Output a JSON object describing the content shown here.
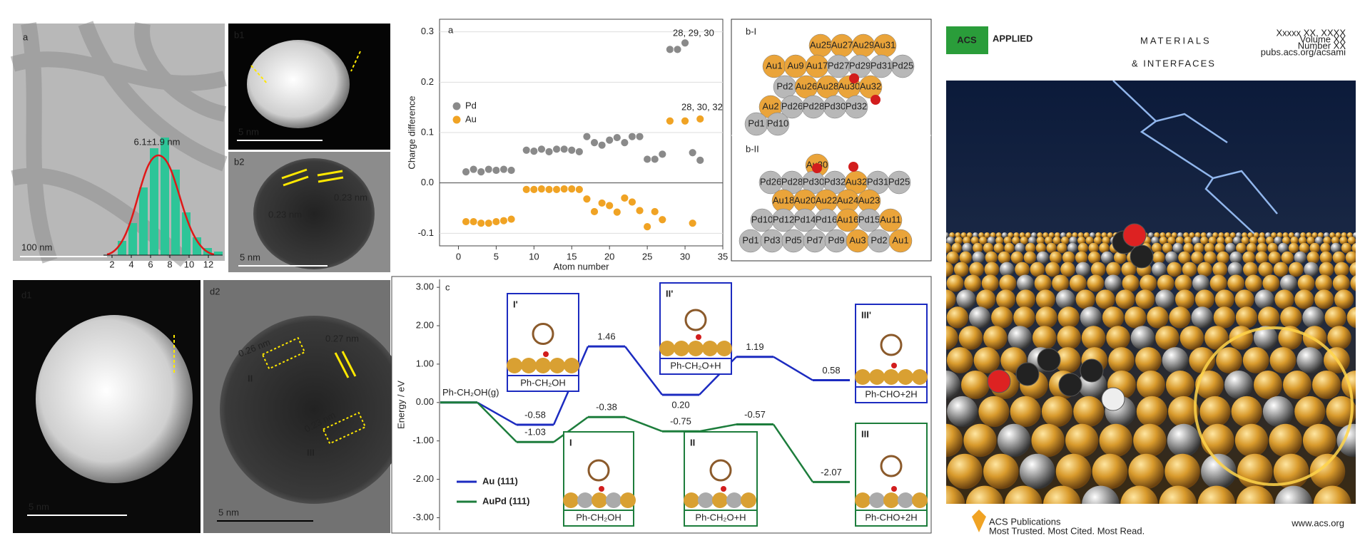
{
  "figure": {
    "panel_a": {
      "label": "a",
      "size": "6.1±1.9 nm",
      "scale": "100 nm",
      "hist_ticks": [
        2,
        4,
        6,
        8,
        10,
        12
      ]
    },
    "panel_b1": {
      "label": "b1",
      "scale": "5 nm"
    },
    "panel_b2": {
      "label": "b2",
      "spacing_1": "0.23 nm",
      "spacing_2": "0.23 nm",
      "scale": "5 nm"
    },
    "panel_d1": {
      "label": "d1",
      "scale": "5 nm"
    },
    "panel_d2": {
      "label": "d2",
      "spacing_1": "0.26 nm",
      "spacing_2": "0.27 nm",
      "spacing_3": "0.23 nm",
      "mark_2": "II",
      "mark_3": "III",
      "scale": "5 nm"
    },
    "panel_b_I": {
      "label": "b-I",
      "atoms": [
        [
          "Au25",
          "Au27",
          "Au29",
          "Au31"
        ],
        [
          "Au1",
          "Au9",
          "Au17",
          "Pd27",
          "Pd29",
          "Pd31",
          "Pd25"
        ],
        [
          "Pd2",
          "Au26",
          "Au28",
          "Au30",
          "Au32"
        ],
        [
          "Au2",
          "Pd26",
          "Pd28",
          "Pd30",
          "Pd32"
        ],
        [
          "Pd1",
          "Pd10"
        ]
      ]
    },
    "panel_b_II": {
      "label": "b-II",
      "atoms": [
        [
          "Au30"
        ],
        [
          "Pd26",
          "Pd28",
          "Pd30",
          "Pd32",
          "Au32",
          "Pd31",
          "Pd25"
        ],
        [
          "Au18",
          "Au20",
          "Au22",
          "Au24",
          "Au23"
        ],
        [
          "Pd10",
          "Pd12",
          "Pd14",
          "Pd16",
          "Au16",
          "Pd15",
          "Au11"
        ],
        [
          "Pd1",
          "Pd3",
          "Pd5",
          "Pd7",
          "Pd9",
          "Au3",
          "Pd2",
          "Au1"
        ]
      ]
    },
    "cover": {
      "acs": "ACS",
      "title_1": "APPLIED",
      "title_2": "MATERIALS",
      "title_3": "& INTERFACES",
      "issue": [
        "Xxxxx XX, XXXX",
        "Volume XX",
        "Number XX",
        "pubs.acs.org/acsami"
      ],
      "publisher": "ACS Publications",
      "tagline": "Most Trusted. Most Cited. Most Read.",
      "url": "www.acs.org"
    }
  },
  "chart_data": [
    {
      "type": "scatter",
      "panel_label": "a",
      "xlabel": "Atom number",
      "ylabel": "Charge difference",
      "xlim": [
        -2.5,
        35
      ],
      "ylim": [
        -0.125,
        0.325
      ],
      "xticks": [
        0,
        5,
        10,
        15,
        20,
        25,
        30,
        35
      ],
      "yticks": [
        -0.1,
        {
          "value": 0,
          "label": "0.0"
        },
        0.1,
        0.2,
        0.3
      ],
      "grid": true,
      "legend": "center left",
      "annotations": [
        "28, 29, 30",
        "28, 30, 32"
      ],
      "series": [
        {
          "name": "Pd",
          "color": "#8a8a8a",
          "x": [
            1,
            2,
            3,
            4,
            5,
            6,
            7,
            9,
            10,
            11,
            12,
            13,
            14,
            15,
            16,
            17,
            18,
            19,
            20,
            21,
            22,
            23,
            24,
            25,
            26,
            27,
            28,
            29,
            30,
            31,
            32
          ],
          "values": [
            0.022,
            0.027,
            0.022,
            0.027,
            0.025,
            0.027,
            0.025,
            0.065,
            0.063,
            0.067,
            0.062,
            0.067,
            0.067,
            0.065,
            0.062,
            0.092,
            0.08,
            0.075,
            0.085,
            0.09,
            0.08,
            0.092,
            0.092,
            0.047,
            0.047,
            0.057,
            0.265,
            0.265,
            0.278,
            0.06,
            0.045
          ]
        },
        {
          "name": "Au",
          "color": "#f0a324",
          "x": [
            1,
            2,
            3,
            4,
            5,
            6,
            7,
            9,
            10,
            11,
            12,
            13,
            14,
            15,
            16,
            17,
            18,
            19,
            20,
            21,
            22,
            23,
            24,
            25,
            26,
            27,
            28,
            30,
            31,
            32
          ],
          "values": [
            -0.077,
            -0.077,
            -0.08,
            -0.08,
            -0.077,
            -0.075,
            -0.072,
            -0.013,
            -0.013,
            -0.012,
            -0.013,
            -0.013,
            -0.012,
            -0.012,
            -0.013,
            -0.032,
            -0.057,
            -0.04,
            -0.045,
            -0.058,
            -0.03,
            -0.038,
            -0.055,
            -0.087,
            -0.057,
            -0.073,
            0.123,
            0.123,
            -0.08,
            0.127
          ]
        }
      ]
    },
    {
      "type": "energy_profile",
      "panel_label": "c",
      "ylabel": "Energy / eV",
      "start_label": "Ph-CH₂OH(g)",
      "ylim": [
        -3.4,
        3.3
      ],
      "yticks": [
        {
          "value": 3,
          "label": "3.00"
        },
        {
          "value": 2,
          "label": "2.00"
        },
        {
          "value": 1,
          "label": "1.00"
        },
        {
          "value": 0,
          "label": "0.00"
        },
        {
          "value": -1,
          "label": "-1.00"
        },
        {
          "value": -2,
          "label": "-2.00"
        },
        {
          "value": -3,
          "label": "-3.00"
        }
      ],
      "legend": "lower left",
      "series": [
        {
          "name": "Au (111)",
          "color": "#1c2bc0",
          "values": [
            0,
            -0.58,
            1.46,
            0.2,
            1.19,
            0.58
          ],
          "value_labels": [
            null,
            "-0.58",
            "1.46",
            "0.20",
            "1.19",
            "0.58"
          ]
        },
        {
          "name": "AuPd (111)",
          "color": "#1d7d3c",
          "values": [
            0,
            -1.03,
            -0.38,
            -0.75,
            -0.57,
            -2.07
          ],
          "value_labels": [
            null,
            "-1.03",
            "-0.38",
            "-0.75",
            "-0.57",
            "-2.07"
          ]
        }
      ],
      "insets": [
        {
          "label": "I'",
          "caption": "Ph-CH₂OH"
        },
        {
          "label": "II'",
          "caption": "Ph-CH₂O+H"
        },
        {
          "label": "III'",
          "caption": "Ph-CHO+2H"
        },
        {
          "label": "I",
          "caption": "Ph-CH₂OH"
        },
        {
          "label": "II",
          "caption": "Ph-CH₂O+H"
        },
        {
          "label": "III",
          "caption": "Ph-CHO+2H"
        }
      ]
    }
  ]
}
